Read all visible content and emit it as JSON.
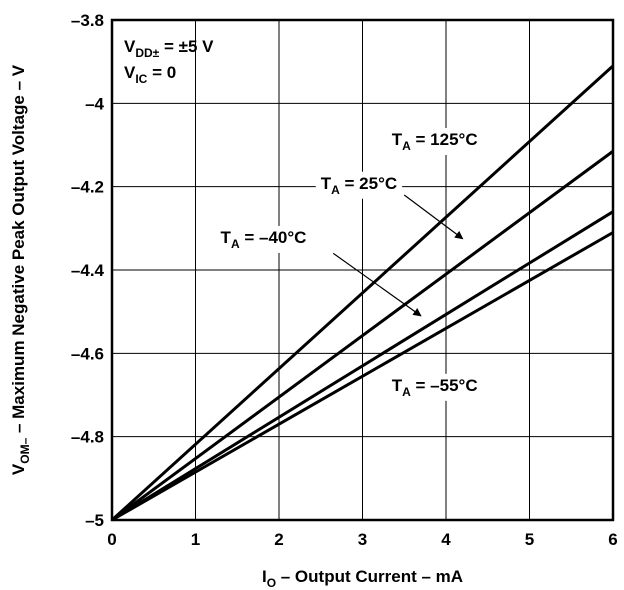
{
  "chart_data": {
    "type": "line",
    "xlabel": {
      "main": "I",
      "sub": "O",
      "rest": " – Output Current – mA"
    },
    "ylabel": {
      "main": "V",
      "sub": "OM–",
      "rest": " – Maximum Negative Peak Output Voltage – V"
    },
    "xlim": [
      0,
      6
    ],
    "ylim": [
      -5,
      -3.8
    ],
    "x_ticks": [
      0,
      1,
      2,
      3,
      4,
      5,
      6
    ],
    "x_tick_labels": [
      "0",
      "1",
      "2",
      "3",
      "4",
      "5",
      "6"
    ],
    "y_ticks": [
      -3.8,
      -4,
      -4.2,
      -4.4,
      -4.6,
      -4.8,
      -5
    ],
    "y_tick_labels": [
      "–3.8",
      "–4",
      "–4.2",
      "–4.4",
      "–4.6",
      "–4.8",
      "–5"
    ],
    "grid": true,
    "conditions": [
      {
        "main": "V",
        "sub": "DD±",
        "rest": " = ±5 V"
      },
      {
        "main": "V",
        "sub": "IC",
        "rest": " = 0"
      }
    ],
    "series": [
      {
        "name": "125°C",
        "x": [
          0,
          6
        ],
        "y": [
          -5,
          -3.91
        ]
      },
      {
        "name": "25°C",
        "x": [
          0,
          6
        ],
        "y": [
          -5,
          -4.115
        ]
      },
      {
        "name": "–40°C",
        "x": [
          0,
          6
        ],
        "y": [
          -5,
          -4.26
        ]
      },
      {
        "name": "–55°C",
        "x": [
          0,
          6
        ],
        "y": [
          -5,
          -4.31
        ]
      }
    ],
    "annotations": [
      {
        "series": "125°C",
        "main": "T",
        "sub": "A",
        "rest": " = 125°C",
        "x": 3.35,
        "y": -4.1,
        "arrow": false
      },
      {
        "series": "25°C",
        "main": "T",
        "sub": "A",
        "rest": " = 25°C",
        "x": 2.5,
        "y": -4.205,
        "arrow": true,
        "arrow_from": [
          3.5,
          -4.22
        ],
        "arrow_to": [
          4.2,
          -4.325
        ]
      },
      {
        "series": "–40°C",
        "main": "T",
        "sub": "A",
        "rest": " = –40°C",
        "x": 1.3,
        "y": -4.335,
        "arrow": true,
        "arrow_from": [
          2.65,
          -4.36
        ],
        "arrow_to": [
          3.7,
          -4.51
        ]
      },
      {
        "series": "–55°C",
        "main": "T",
        "sub": "A",
        "rest": " = –55°C",
        "x": 3.35,
        "y": -4.69,
        "arrow": false
      }
    ]
  }
}
